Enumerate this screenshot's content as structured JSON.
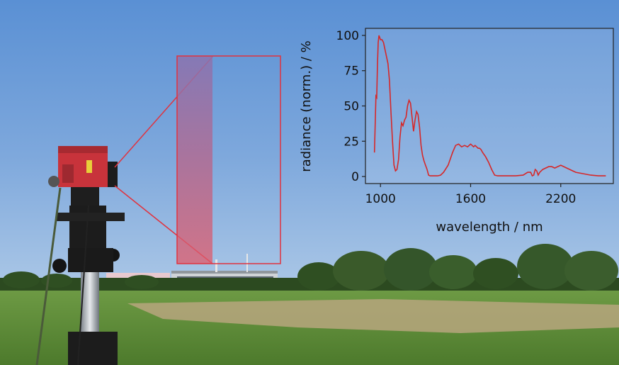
{
  "colors": {
    "sky_top": "#5a90d4",
    "sky_bottom": "#a9c6e6",
    "grass": "#5f8a3a",
    "dry_patch": "#b7a67e",
    "camera_red": "#c8333b",
    "highlight": "#e0333f",
    "spectrum_line": "#d62728"
  },
  "scene": {
    "objects": [
      "hyperspectral-camera",
      "tripod",
      "field",
      "tree-line",
      "building",
      "sky"
    ]
  },
  "chart_data": {
    "type": "line",
    "xlabel": "wavelength / nm",
    "ylabel": "radiance (norm.) / %",
    "xlim": [
      900,
      2550
    ],
    "ylim": [
      -5,
      105
    ],
    "xticks": [
      1000,
      1600,
      2200
    ],
    "yticks": [
      0,
      25,
      50,
      75,
      100
    ],
    "grid": false,
    "series": [
      {
        "x": [
          960,
          970,
          975,
          980,
          985,
          990,
          1000,
          1010,
          1020,
          1030,
          1040,
          1050,
          1060,
          1070,
          1080,
          1090,
          1100,
          1110,
          1120,
          1130,
          1140,
          1150,
          1160,
          1170,
          1180,
          1190,
          1200,
          1210,
          1220,
          1230,
          1240,
          1250,
          1260,
          1270,
          1280,
          1290,
          1300,
          1310,
          1320,
          1330,
          1340,
          1350,
          1360,
          1380,
          1400,
          1420,
          1450,
          1480,
          1500,
          1520,
          1540,
          1560,
          1580,
          1600,
          1610,
          1620,
          1630,
          1640,
          1650,
          1660,
          1670,
          1680,
          1700,
          1720,
          1740,
          1760,
          1780,
          1800,
          1850,
          1900,
          1950,
          1980,
          2000,
          2010,
          2020,
          2030,
          2040,
          2050,
          2060,
          2080,
          2100,
          2120,
          2140,
          2160,
          2180,
          2200,
          2220,
          2240,
          2260,
          2280,
          2300,
          2350,
          2400,
          2450,
          2500
        ],
        "y": [
          17,
          57,
          56,
          80,
          95,
          100,
          97,
          97,
          95,
          90,
          85,
          80,
          68,
          45,
          25,
          8,
          4,
          5,
          12,
          28,
          38,
          36,
          40,
          42,
          50,
          54,
          52,
          42,
          32,
          40,
          46,
          44,
          35,
          22,
          15,
          11,
          8,
          5,
          1,
          0.5,
          0.5,
          0.5,
          0.5,
          0.5,
          1,
          3,
          8,
          17,
          22,
          23,
          21,
          22,
          21,
          23,
          22,
          21,
          22,
          21,
          20,
          20,
          19,
          17,
          14,
          10,
          5,
          1,
          0.5,
          0.5,
          0.5,
          0.5,
          1,
          3,
          3,
          0.5,
          1,
          5,
          4,
          1,
          3,
          5,
          6,
          7,
          7,
          6,
          7,
          8,
          7,
          6,
          5,
          4,
          3,
          2,
          1,
          0.5,
          0.5
        ]
      }
    ]
  }
}
